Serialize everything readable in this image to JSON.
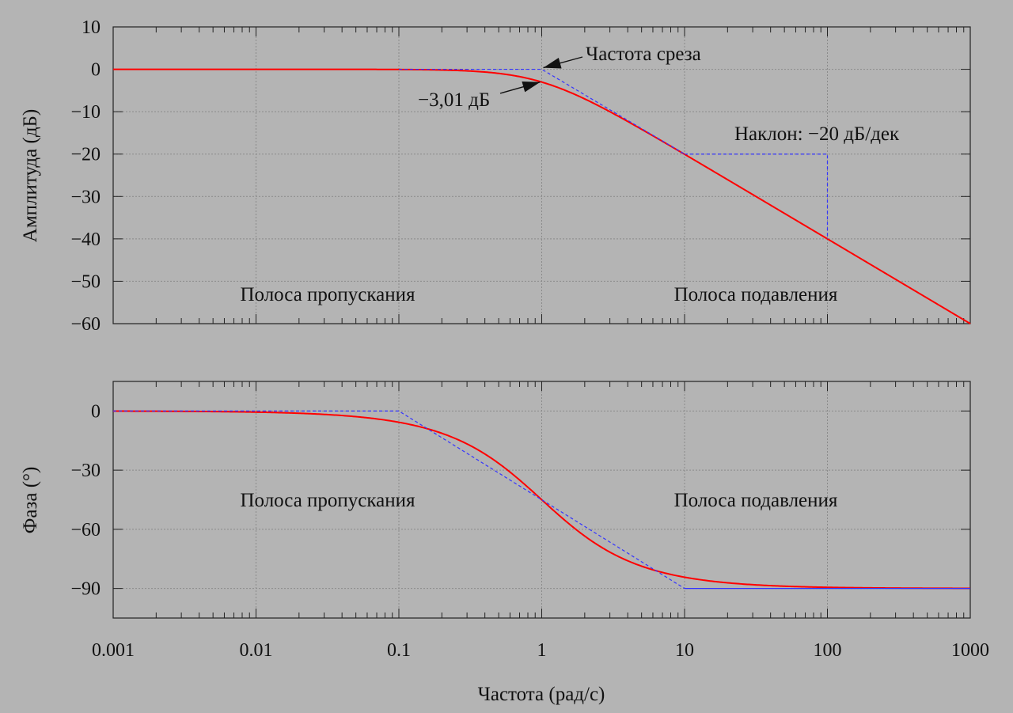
{
  "chart_data": [
    {
      "type": "line",
      "ylabel": "Амплитуда (дБ)",
      "xscale": "log",
      "xlim": [
        0.001,
        1000
      ],
      "ylim": [
        -60,
        10
      ],
      "yticks": [
        10,
        0,
        -10,
        -20,
        -30,
        -40,
        -50,
        -60
      ],
      "ytick_labels": [
        "10",
        "0",
        "−10",
        "−20",
        "−30",
        "−40",
        "−50",
        "−60"
      ],
      "grid": true,
      "series": [
        {
          "style": "solid",
          "color": "#ff0000",
          "formula": "-10*log10(1+w^2)",
          "x": [
            0.001,
            0.01,
            0.1,
            0.3,
            1,
            3,
            10,
            100,
            1000
          ],
          "y": [
            0,
            0,
            -0.04,
            -0.37,
            -3.01,
            -10,
            -20.04,
            -40,
            -60
          ]
        },
        {
          "style": "dashed",
          "color": "#3333ff",
          "formula": "asymptote",
          "x": [
            0.1,
            1,
            10
          ],
          "y": [
            0,
            0,
            -20
          ]
        }
      ],
      "slope_triangle": {
        "color": "#3333ff",
        "x_from": 10,
        "x_to": 100,
        "y_from": -20,
        "y_to": -40
      },
      "annotations": [
        {
          "text": "Частота среза",
          "target": [
            1,
            0
          ]
        },
        {
          "text": "−3,01 дБ",
          "target": [
            1,
            -3.01
          ]
        },
        {
          "text": "Наклон: −20 дБ/дек"
        },
        {
          "text": "Полоса пропускания"
        },
        {
          "text": "Полоса подавления"
        }
      ]
    },
    {
      "type": "line",
      "ylabel": "Фаза (°)",
      "xlabel": "Частота (рад/с)",
      "xscale": "log",
      "xlim": [
        0.001,
        1000
      ],
      "ylim": [
        -105,
        15
      ],
      "yticks": [
        0,
        -30,
        -60,
        -90
      ],
      "ytick_labels": [
        "0",
        "−30",
        "−60",
        "−90"
      ],
      "xticks": [
        0.001,
        0.01,
        0.1,
        1,
        10,
        100,
        1000
      ],
      "xtick_labels": [
        "0.001",
        "0.01",
        "0.1",
        "1",
        "10",
        "100",
        "1000"
      ],
      "grid": true,
      "series": [
        {
          "style": "solid",
          "color": "#ff0000",
          "formula": "-atan(w)",
          "x": [
            0.001,
            0.01,
            0.1,
            0.3,
            1,
            3,
            10,
            100,
            1000
          ],
          "y": [
            -0.06,
            -0.57,
            -5.7,
            -16.7,
            -45,
            -71.6,
            -84.3,
            -89.4,
            -89.9
          ]
        },
        {
          "style": "dashed",
          "color": "#3333ff",
          "formula": "asymptote",
          "x": [
            0.001,
            0.1,
            10
          ],
          "y": [
            0,
            0,
            -90
          ]
        },
        {
          "style": "solid",
          "color": "#3333ff",
          "formula": "asymptote",
          "x": [
            10,
            1000
          ],
          "y": [
            -90,
            -90
          ]
        }
      ],
      "annotations": [
        {
          "text": "Полоса пропускания"
        },
        {
          "text": "Полоса подавления"
        }
      ]
    }
  ]
}
